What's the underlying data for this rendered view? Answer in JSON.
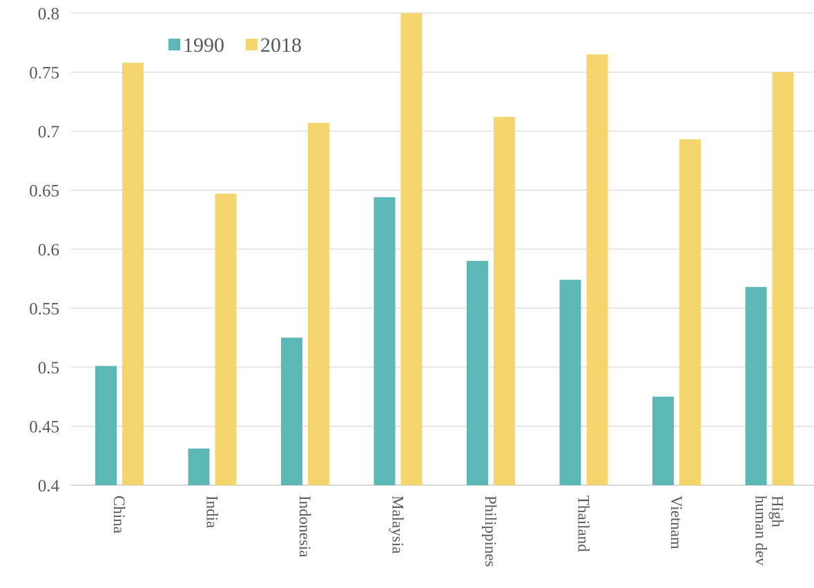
{
  "chart_data": {
    "type": "bar",
    "title": "",
    "xlabel": "",
    "ylabel": "",
    "categories": [
      [
        "China"
      ],
      [
        "India"
      ],
      [
        "Indonesia"
      ],
      [
        "Malaysia"
      ],
      [
        "Philippines"
      ],
      [
        "Thailand"
      ],
      [
        "Vietnam"
      ],
      [
        "High",
        "human dev"
      ]
    ],
    "series": [
      {
        "name": "1990",
        "color": "#5BB8B4",
        "values": [
          0.501,
          0.431,
          0.525,
          0.644,
          0.59,
          0.574,
          0.475,
          0.568
        ]
      },
      {
        "name": "2018",
        "color": "#F5D56E",
        "values": [
          0.758,
          0.647,
          0.707,
          0.804,
          0.712,
          0.765,
          0.693,
          0.75
        ]
      }
    ],
    "ylim": [
      0.4,
      0.8
    ],
    "yticks": [
      "0.4",
      "0.45",
      "0.5",
      "0.55",
      "0.6",
      "0.65",
      "0.7",
      "0.75",
      "0.8"
    ],
    "grid": true,
    "legend": "top-left"
  }
}
